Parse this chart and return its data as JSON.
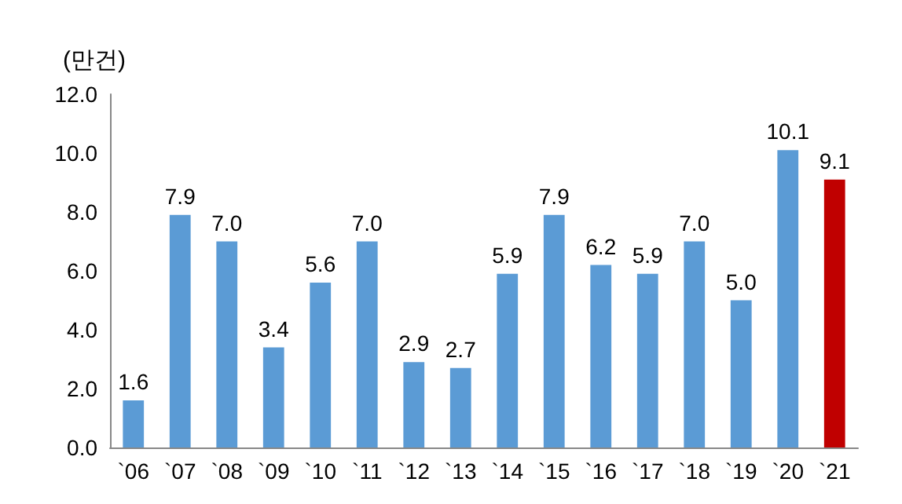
{
  "chart_data": {
    "type": "bar",
    "ylabel": "(만건)",
    "categories": [
      "`06",
      "`07",
      "`08",
      "`09",
      "`10",
      "`11",
      "`12",
      "`13",
      "`14",
      "`15",
      "`16",
      "`17",
      "`18",
      "`19",
      "`20",
      "`21"
    ],
    "values": [
      1.6,
      7.9,
      7.0,
      3.4,
      5.6,
      7.0,
      2.9,
      2.7,
      5.9,
      7.9,
      6.2,
      5.9,
      7.0,
      5.0,
      10.1,
      9.1
    ],
    "colors": [
      "#5b9bd5",
      "#5b9bd5",
      "#5b9bd5",
      "#5b9bd5",
      "#5b9bd5",
      "#5b9bd5",
      "#5b9bd5",
      "#5b9bd5",
      "#5b9bd5",
      "#5b9bd5",
      "#5b9bd5",
      "#5b9bd5",
      "#5b9bd5",
      "#5b9bd5",
      "#5b9bd5",
      "#c00000"
    ],
    "value_labels": [
      "1.6",
      "7.9",
      "7.0",
      "3.4",
      "5.6",
      "7.0",
      "2.9",
      "2.7",
      "5.9",
      "7.9",
      "6.2",
      "5.9",
      "7.0",
      "5.0",
      "10.1",
      "9.1"
    ],
    "ylim": [
      0,
      12
    ],
    "yticks": [
      {
        "value": 0,
        "label": "0.0"
      },
      {
        "value": 2,
        "label": "2.0"
      },
      {
        "value": 4,
        "label": "4.0"
      },
      {
        "value": 6,
        "label": "6.0"
      },
      {
        "value": 8,
        "label": "8.0"
      },
      {
        "value": 10,
        "label": "10.0"
      },
      {
        "value": 12,
        "label": "12.0"
      }
    ],
    "grid": false
  }
}
